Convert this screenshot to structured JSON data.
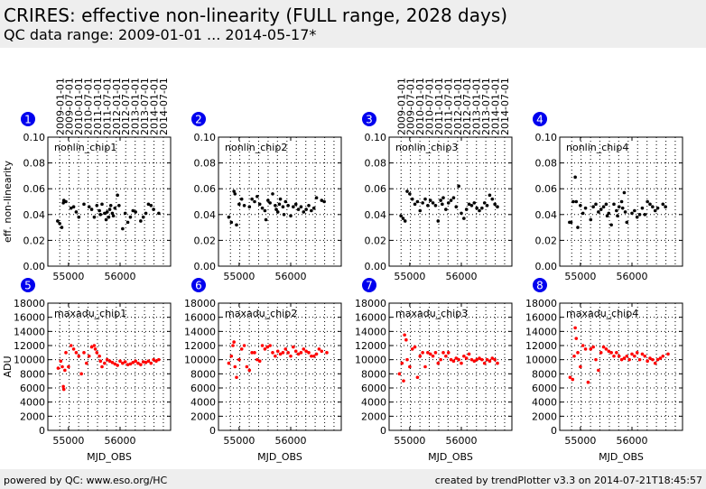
{
  "header": {
    "title": "CRIRES: effective non-linearity (FULL range, 2028 days)",
    "subtitle": "QC data range: 2009-01-01 ... 2014-05-17*"
  },
  "footer": {
    "left": "powered by QC: www.eso.org/HC",
    "right": "created by trendPlotter v3.3 on 2014-07-21T18:45:57"
  },
  "date_labels": [
    "2009-01-01",
    "2009-07-01",
    "2010-01-01",
    "2010-07-01",
    "2011-01-01",
    "2011-07-01",
    "2012-01-01",
    "2012-07-01",
    "2013-01-01",
    "2013-07-01",
    "2014-01-01",
    "2014-07-01"
  ],
  "date_label_mjd": [
    54832,
    55013,
    55197,
    55378,
    55562,
    55743,
    55927,
    56109,
    56293,
    56474,
    56658,
    56839
  ],
  "colors": {
    "marker_top": "#000000",
    "marker_bottom": "#ff0000",
    "badge": "#0000ee"
  },
  "chart_data": [
    {
      "type": "scatter",
      "badge": "1",
      "panel_label": "nonlin_chip1",
      "xlabel": "",
      "ylabel": "eff. non-linearity",
      "xlim": [
        54600,
        56980
      ],
      "ylim": [
        0,
        0.1
      ],
      "xticks": [
        55000,
        56000
      ],
      "yticks": [
        "0.00",
        "0.02",
        "0.04",
        "0.06",
        "0.08",
        "0.10"
      ],
      "x": [
        54790,
        54830,
        54870,
        54900,
        54910,
        54950,
        55050,
        55100,
        55150,
        55200,
        55300,
        55400,
        55450,
        55500,
        55550,
        55600,
        55620,
        55650,
        55700,
        55730,
        55750,
        55780,
        55800,
        55820,
        55850,
        55870,
        55900,
        55950,
        55980,
        56050,
        56100,
        56150,
        56200,
        56250,
        56300,
        56400,
        56450,
        56500,
        56550,
        56600,
        56650,
        56750
      ],
      "y": [
        0.035,
        0.033,
        0.03,
        0.049,
        0.051,
        0.05,
        0.045,
        0.046,
        0.042,
        0.038,
        0.048,
        0.046,
        0.044,
        0.038,
        0.047,
        0.043,
        0.04,
        0.048,
        0.041,
        0.036,
        0.042,
        0.038,
        0.044,
        0.047,
        0.041,
        0.039,
        0.045,
        0.055,
        0.047,
        0.029,
        0.041,
        0.034,
        0.038,
        0.043,
        0.042,
        0.035,
        0.038,
        0.041,
        0.048,
        0.047,
        0.044,
        0.041
      ]
    },
    {
      "type": "scatter",
      "badge": "2",
      "panel_label": "nonlin_chip2",
      "xlabel": "",
      "ylabel": "",
      "xlim": [
        54600,
        56980
      ],
      "ylim": [
        0,
        0.1
      ],
      "xticks": [
        55000,
        56000
      ],
      "yticks": [
        "0.00",
        "0.02",
        "0.04",
        "0.06",
        "0.08",
        "0.10"
      ],
      "x": [
        54800,
        54850,
        54900,
        54920,
        54950,
        55000,
        55050,
        55100,
        55200,
        55250,
        55300,
        55350,
        55400,
        55450,
        55500,
        55520,
        55560,
        55600,
        55650,
        55700,
        55720,
        55750,
        55780,
        55800,
        55850,
        55870,
        55900,
        55950,
        56000,
        56050,
        56100,
        56150,
        56200,
        56250,
        56300,
        56350,
        56400,
        56450,
        56500,
        56600,
        56650
      ],
      "y": [
        0.038,
        0.034,
        0.058,
        0.056,
        0.032,
        0.048,
        0.052,
        0.047,
        0.046,
        0.052,
        0.05,
        0.054,
        0.048,
        0.045,
        0.043,
        0.036,
        0.051,
        0.049,
        0.056,
        0.047,
        0.044,
        0.042,
        0.048,
        0.052,
        0.046,
        0.04,
        0.05,
        0.047,
        0.039,
        0.046,
        0.048,
        0.044,
        0.046,
        0.042,
        0.044,
        0.047,
        0.043,
        0.045,
        0.053,
        0.051,
        0.05
      ]
    },
    {
      "type": "scatter",
      "badge": "3",
      "panel_label": "nonlin_chip3",
      "xlabel": "",
      "ylabel": "",
      "xlim": [
        54600,
        56980
      ],
      "ylim": [
        0,
        0.1
      ],
      "xticks": [
        55000,
        56000
      ],
      "yticks": [
        "0.00",
        "0.02",
        "0.04",
        "0.06",
        "0.08",
        "0.10"
      ],
      "x": [
        54830,
        54870,
        54910,
        54950,
        55000,
        55050,
        55100,
        55150,
        55200,
        55250,
        55300,
        55350,
        55400,
        55450,
        55500,
        55550,
        55600,
        55630,
        55650,
        55700,
        55750,
        55800,
        55850,
        55900,
        55950,
        56000,
        56050,
        56100,
        56150,
        56200,
        56250,
        56300,
        56350,
        56400,
        56450,
        56500,
        56550,
        56600,
        56650,
        56700
      ],
      "y": [
        0.039,
        0.037,
        0.035,
        0.058,
        0.056,
        0.052,
        0.048,
        0.05,
        0.043,
        0.049,
        0.052,
        0.047,
        0.051,
        0.049,
        0.047,
        0.035,
        0.051,
        0.048,
        0.053,
        0.044,
        0.049,
        0.051,
        0.053,
        0.046,
        0.062,
        0.041,
        0.037,
        0.044,
        0.048,
        0.047,
        0.049,
        0.045,
        0.043,
        0.045,
        0.049,
        0.047,
        0.055,
        0.052,
        0.048,
        0.046
      ]
    },
    {
      "type": "scatter",
      "badge": "4",
      "panel_label": "nonlin_chip4",
      "xlabel": "",
      "ylabel": "",
      "xlim": [
        54600,
        56980
      ],
      "ylim": [
        0,
        0.1
      ],
      "xticks": [
        55000,
        56000
      ],
      "yticks": [
        "0.00",
        "0.02",
        "0.04",
        "0.06",
        "0.08",
        "0.10"
      ],
      "x": [
        54790,
        54820,
        54860,
        54900,
        54920,
        54950,
        55000,
        55050,
        55100,
        55200,
        55250,
        55300,
        55350,
        55400,
        55450,
        55500,
        55520,
        55550,
        55600,
        55650,
        55700,
        55720,
        55750,
        55800,
        55820,
        55850,
        55870,
        55900,
        56000,
        56050,
        56100,
        56150,
        56200,
        56250,
        56300,
        56350,
        56400,
        56450,
        56500,
        56600,
        56650
      ],
      "y": [
        0.034,
        0.034,
        0.05,
        0.069,
        0.05,
        0.03,
        0.047,
        0.041,
        0.045,
        0.036,
        0.046,
        0.048,
        0.042,
        0.044,
        0.046,
        0.048,
        0.039,
        0.041,
        0.032,
        0.048,
        0.043,
        0.039,
        0.046,
        0.05,
        0.045,
        0.057,
        0.042,
        0.034,
        0.041,
        0.043,
        0.038,
        0.04,
        0.045,
        0.04,
        0.05,
        0.048,
        0.046,
        0.043,
        0.045,
        0.048,
        0.046
      ]
    },
    {
      "type": "scatter",
      "badge": "5",
      "panel_label": "maxadu_chip1",
      "xlabel": "MJD_OBS",
      "ylabel": "ADU",
      "xlim": [
        54600,
        56980
      ],
      "ylim": [
        0,
        18000
      ],
      "xticks": [
        55000,
        56000
      ],
      "yticks": [
        "0",
        "2000",
        "4000",
        "6000",
        "8000",
        "10000",
        "12000",
        "14000",
        "16000",
        "18000"
      ],
      "x": [
        54800,
        54850,
        54880,
        54900,
        54910,
        54930,
        54950,
        55000,
        55050,
        55100,
        55150,
        55200,
        55250,
        55300,
        55350,
        55400,
        55450,
        55500,
        55520,
        55550,
        55600,
        55620,
        55650,
        55700,
        55750,
        55800,
        55850,
        55900,
        55950,
        56000,
        56050,
        56100,
        56150,
        56200,
        56250,
        56300,
        56350,
        56400,
        56450,
        56500,
        56550,
        56600,
        56650,
        56700,
        56750
      ],
      "y": [
        8800,
        9800,
        9000,
        6200,
        5800,
        8500,
        11000,
        9000,
        12000,
        11500,
        11000,
        10500,
        8000,
        11000,
        9500,
        10500,
        11800,
        12000,
        11500,
        11000,
        10500,
        9800,
        9000,
        9500,
        10000,
        9800,
        9600,
        9400,
        9200,
        9800,
        9500,
        9700,
        9300,
        9400,
        9600,
        9800,
        9500,
        9300,
        9700,
        9600,
        9800,
        9500,
        10000,
        9800,
        10000
      ]
    },
    {
      "type": "scatter",
      "badge": "6",
      "panel_label": "maxadu_chip2",
      "xlabel": "MJD_OBS",
      "ylabel": "",
      "xlim": [
        54600,
        56980
      ],
      "ylim": [
        0,
        18000
      ],
      "xticks": [
        55000,
        56000
      ],
      "yticks": [
        "0",
        "2000",
        "4000",
        "6000",
        "8000",
        "10000",
        "12000",
        "14000",
        "16000",
        "18000"
      ],
      "x": [
        54800,
        54850,
        54880,
        54900,
        54920,
        54950,
        55000,
        55050,
        55100,
        55150,
        55200,
        55250,
        55300,
        55350,
        55400,
        55450,
        55500,
        55550,
        55600,
        55650,
        55700,
        55750,
        55800,
        55850,
        55900,
        55950,
        56000,
        56050,
        56100,
        56150,
        56200,
        56250,
        56300,
        56350,
        56400,
        56450,
        56500,
        56550,
        56600,
        56700
      ],
      "y": [
        9500,
        10500,
        12000,
        12500,
        9000,
        7500,
        10000,
        11500,
        12000,
        9000,
        8500,
        11000,
        11000,
        10000,
        9800,
        12000,
        11500,
        11800,
        12000,
        11000,
        10500,
        11200,
        10800,
        11000,
        11500,
        11000,
        10500,
        11800,
        11200,
        10800,
        11000,
        11500,
        11200,
        11000,
        10500,
        10500,
        10800,
        11500,
        11200,
        11000
      ]
    },
    {
      "type": "scatter",
      "badge": "7",
      "panel_label": "maxadu_chip3",
      "xlabel": "MJD_OBS",
      "ylabel": "",
      "xlim": [
        54600,
        56980
      ],
      "ylim": [
        0,
        18000
      ],
      "xticks": [
        55000,
        56000
      ],
      "yticks": [
        "0",
        "2000",
        "4000",
        "6000",
        "8000",
        "10000",
        "12000",
        "14000",
        "16000",
        "18000"
      ],
      "x": [
        54800,
        54850,
        54880,
        54900,
        54930,
        54950,
        55000,
        55050,
        55100,
        55150,
        55200,
        55250,
        55300,
        55350,
        55400,
        55450,
        55500,
        55550,
        55600,
        55650,
        55700,
        55750,
        55800,
        55850,
        55900,
        55950,
        56000,
        56050,
        56100,
        56150,
        56200,
        56250,
        56300,
        56350,
        56400,
        56450,
        56500,
        56550,
        56600,
        56650,
        56700
      ],
      "y": [
        8000,
        9500,
        7000,
        13500,
        12800,
        10000,
        9000,
        11500,
        11800,
        7500,
        10500,
        11000,
        9000,
        11000,
        10800,
        10500,
        11000,
        9500,
        10000,
        11000,
        10500,
        11000,
        10000,
        9800,
        10200,
        10000,
        9500,
        10500,
        10200,
        10800,
        10000,
        9800,
        10000,
        10200,
        10000,
        9500,
        10000,
        9800,
        10200,
        10000,
        9500
      ]
    },
    {
      "type": "scatter",
      "badge": "8",
      "panel_label": "maxadu_chip4",
      "xlabel": "MJD_OBS",
      "ylabel": "",
      "xlim": [
        54600,
        56980
      ],
      "ylim": [
        0,
        18000
      ],
      "xticks": [
        55000,
        56000
      ],
      "yticks": [
        "0",
        "2000",
        "4000",
        "6000",
        "8000",
        "10000",
        "12000",
        "14000",
        "16000",
        "18000"
      ],
      "x": [
        54800,
        54850,
        54880,
        54900,
        54920,
        54950,
        55000,
        55050,
        55100,
        55150,
        55200,
        55250,
        55300,
        55350,
        55400,
        55450,
        55500,
        55550,
        55600,
        55650,
        55700,
        55750,
        55800,
        55850,
        55900,
        55950,
        56000,
        56050,
        56100,
        56150,
        56200,
        56250,
        56300,
        56350,
        56400,
        56450,
        56500,
        56550,
        56600,
        56700
      ],
      "y": [
        7500,
        7200,
        10500,
        14500,
        13000,
        11000,
        9000,
        12000,
        11500,
        6800,
        11500,
        11800,
        10000,
        8500,
        11000,
        11800,
        11500,
        11200,
        11000,
        10500,
        11000,
        10500,
        10000,
        10200,
        10500,
        10000,
        10800,
        10500,
        11000,
        10000,
        10800,
        10500,
        9800,
        10200,
        10000,
        9500,
        10000,
        10200,
        10500,
        10800
      ]
    }
  ]
}
